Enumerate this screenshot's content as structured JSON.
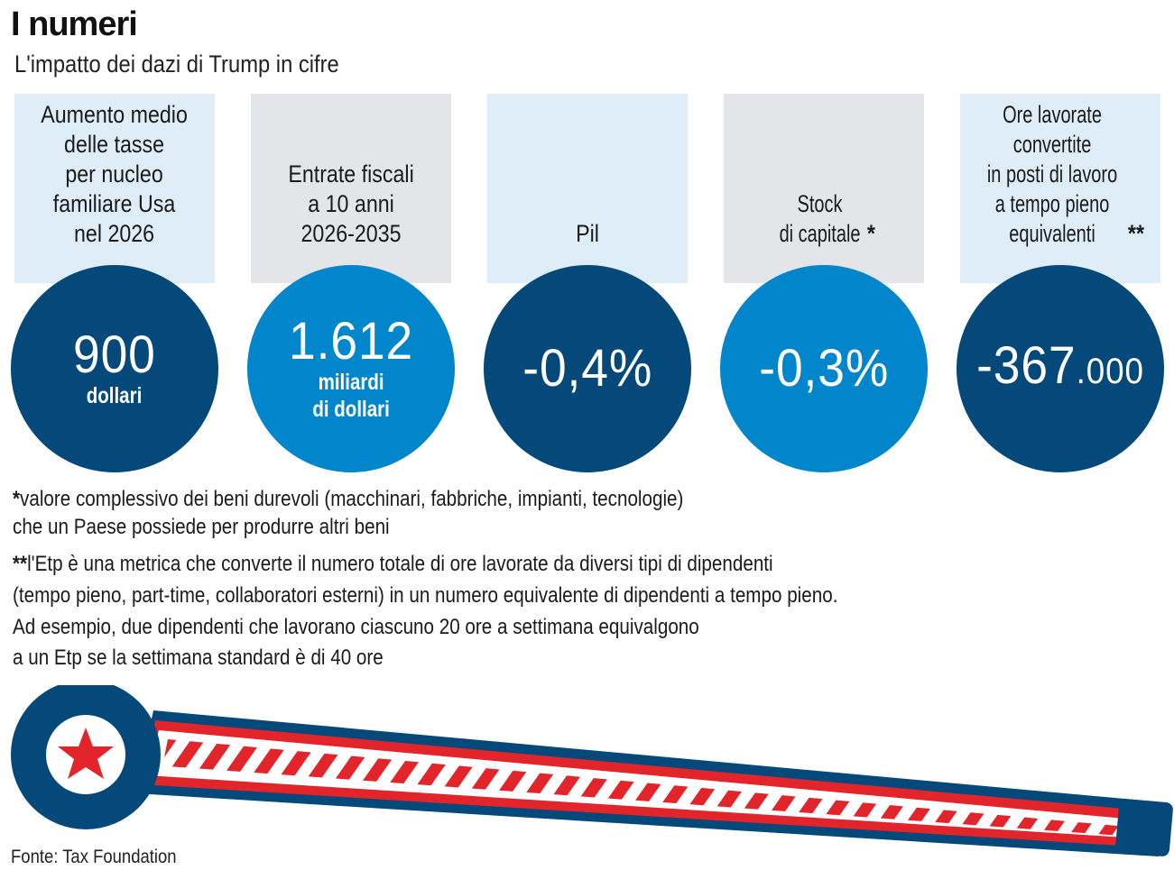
{
  "header": {
    "title": "I numeri",
    "subtitle": "L'impatto dei dazi di Trump in cifre"
  },
  "stats": [
    {
      "label": "Aumento medio\ndelle tasse\nper nucleo\nfamiliare Usa\nnel 2026",
      "value": "900",
      "unit": "dollari",
      "circle_color": "#04497a"
    },
    {
      "label": "Entrate fiscali\na 10 anni\n2026-2035",
      "value": "1.612",
      "unit": "miliardi\ndi dollari",
      "circle_color": "#0286cb"
    },
    {
      "label": "Pil",
      "value": "-0,4%",
      "circle_color": "#04497a"
    },
    {
      "label": "Stock\ndi capitale",
      "label_marker": "*",
      "value": "-0,3%",
      "circle_color": "#0286cb"
    },
    {
      "label": "Ore lavorate\nconvertite\nin posti di lavoro\na tempo pieno\nequivalenti",
      "label_marker": "**",
      "value": "-367",
      "value_suffix": ".000",
      "circle_color": "#04497a"
    }
  ],
  "notes": {
    "note1_marker": "*",
    "note1_line1": "valore complessivo dei beni durevoli (macchinari, fabbriche, impianti, tecnologie)",
    "note1_line2": "che un Paese possiede per produrre altri beni",
    "note2_marker": "**",
    "note2_line1": "l'Etp è una metrica che converte il numero totale di ore lavorate da diversi tipi di dipendenti",
    "note2_line2": "(tempo pieno, part-time, collaboratori esterni) in un numero equivalente di dipendenti a tempo pieno.",
    "note2_line3": "Ad esempio, due dipendenti che lavorano ciascuno 20 ore a settimana equivalgono",
    "note2_line4": "a un Etp se la settimana standard è di 40 ore"
  },
  "source": "Fonte: Tax Foundation",
  "colors": {
    "dark_blue": "#04497a",
    "light_blue": "#0286cb",
    "panel_light": "#deedf8",
    "panel_grey": "#e3e5e8",
    "stripe_red": "#e2242b"
  },
  "decoration": {
    "illustration": "barrier-gate-with-star",
    "icon": "star-icon"
  }
}
